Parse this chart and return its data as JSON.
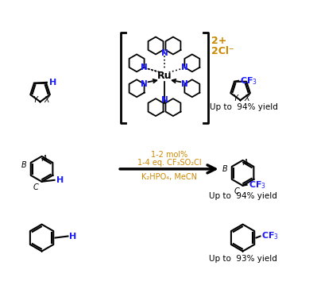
{
  "bg_color": "#ffffff",
  "black": "#000000",
  "blue": "#1a1aff",
  "orange": "#cc8800",
  "condition_line1": "1-2 mol%",
  "condition_line2": "1-4 eq. CF₃SO₂Cl",
  "condition_line3": "K₂HPO₄, MeCN",
  "yield1": "Up to  94% yield",
  "yield2": "Up to  94% yield",
  "yield3": "Up to  93% yield",
  "charge": "2+",
  "counter_ion": "2Cl⁻",
  "ru_label": "Ru",
  "figsize": [
    3.94,
    3.59
  ],
  "dpi": 100
}
